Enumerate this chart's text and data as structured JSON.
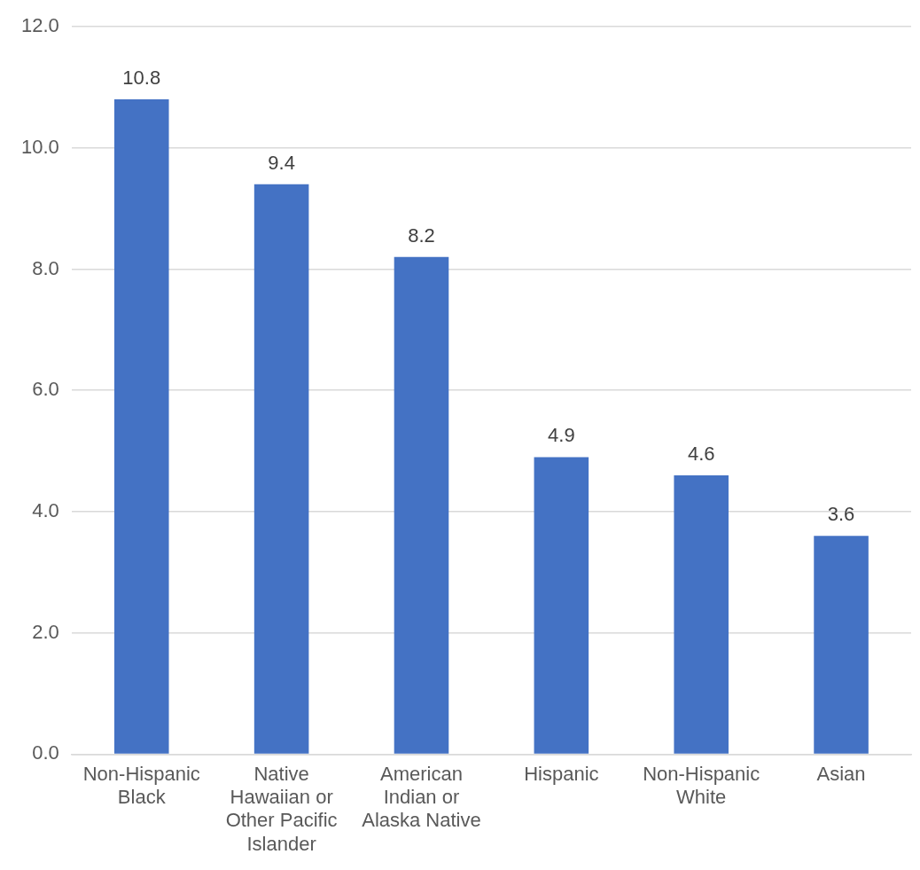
{
  "chart_data": {
    "type": "bar",
    "categories": [
      "Non-Hispanic Black",
      "Native Hawaiian or Other Pacific Islander",
      "American Indian or Alaska Native",
      "Hispanic",
      "Non-Hispanic White",
      "Asian"
    ],
    "values": [
      10.8,
      9.4,
      8.2,
      4.9,
      4.6,
      3.6
    ],
    "color": "#4472c4",
    "ylim": [
      0,
      12
    ],
    "yticks": [
      {
        "value": 0,
        "label": "0.0"
      },
      {
        "value": 2,
        "label": "2.0"
      },
      {
        "value": 4,
        "label": "4.0"
      },
      {
        "value": 6,
        "label": "6.0"
      },
      {
        "value": 8,
        "label": "8.0"
      },
      {
        "value": 10,
        "label": "10.0"
      },
      {
        "value": 12,
        "label": "12.0"
      }
    ],
    "grid": "y",
    "data_labels": true
  }
}
